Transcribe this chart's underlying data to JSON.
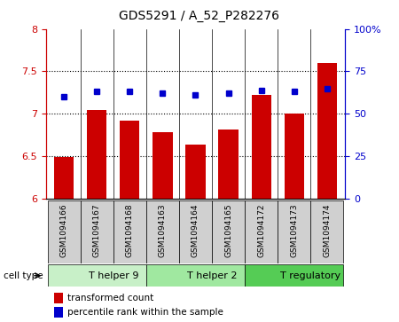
{
  "title": "GDS5291 / A_52_P282276",
  "samples": [
    "GSM1094166",
    "GSM1094167",
    "GSM1094168",
    "GSM1094163",
    "GSM1094164",
    "GSM1094165",
    "GSM1094172",
    "GSM1094173",
    "GSM1094174"
  ],
  "transformed_counts": [
    6.49,
    7.04,
    6.92,
    6.78,
    6.64,
    6.82,
    7.22,
    7.0,
    7.6
  ],
  "percentile_ranks": [
    60,
    63,
    63,
    62,
    61,
    62,
    64,
    63,
    65
  ],
  "ylim_left": [
    6.0,
    8.0
  ],
  "ylim_right": [
    0,
    100
  ],
  "yticks_left": [
    6.0,
    6.5,
    7.0,
    7.5,
    8.0
  ],
  "yticks_right": [
    0,
    25,
    50,
    75,
    100
  ],
  "ytick_labels_left": [
    "6",
    "6.5",
    "7",
    "7.5",
    "8"
  ],
  "ytick_labels_right": [
    "0",
    "25",
    "50",
    "75",
    "100%"
  ],
  "bar_color": "#cc0000",
  "dot_color": "#0000cc",
  "bar_width": 0.6,
  "cell_types": [
    {
      "label": "T helper 9",
      "start": 0,
      "end": 3,
      "color": "#c8f0c8"
    },
    {
      "label": "T helper 2",
      "start": 3,
      "end": 6,
      "color": "#a0e8a0"
    },
    {
      "label": "T regulatory",
      "start": 6,
      "end": 9,
      "color": "#55cc55"
    }
  ],
  "cell_type_label": "cell type",
  "legend_bar_label": "transformed count",
  "legend_dot_label": "percentile rank within the sample",
  "sample_bg_color": "#d0d0d0",
  "base_value": 6.0,
  "hgrid_values": [
    6.5,
    7.0,
    7.5
  ]
}
